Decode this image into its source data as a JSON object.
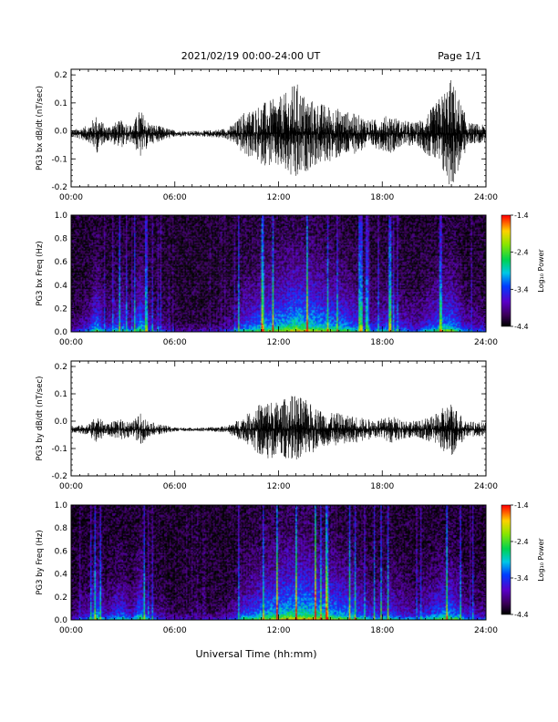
{
  "header": {
    "date_range": "2021/02/19   00:00-24:00 UT",
    "page": "Page 1/1"
  },
  "x_axis_title": "Universal Time (hh:mm)",
  "chart_data": [
    {
      "id": "bx-waveform",
      "type": "line",
      "ylabel": "PG3 bx dB/dt (nT/sec)",
      "xlim": [
        0,
        24
      ],
      "ylim": [
        -0.2,
        0.22
      ],
      "xticks": [
        "00:00",
        "06:00",
        "12:00",
        "18:00",
        "24:00"
      ],
      "yticks": [
        "-0.2",
        "-0.1",
        "0.0",
        "0.1",
        "0.2"
      ],
      "ytick_values": [
        -0.2,
        -0.1,
        0.0,
        0.1,
        0.2
      ],
      "x_hours": [
        0,
        1,
        1.5,
        2,
        2.5,
        3,
        3.5,
        4,
        4.5,
        5,
        6,
        7,
        8,
        9,
        9.5,
        10,
        10.5,
        11,
        11.5,
        12,
        12.5,
        13,
        13.5,
        14,
        14.5,
        15,
        15.5,
        16,
        16.5,
        17,
        17.5,
        18,
        18.5,
        19,
        20,
        20.5,
        21,
        21.5,
        22,
        22.5,
        23,
        24
      ],
      "envelope": [
        0.012,
        0.03,
        0.07,
        0.025,
        0.04,
        0.05,
        0.03,
        0.09,
        0.04,
        0.03,
        0.012,
        0.01,
        0.012,
        0.02,
        0.04,
        0.08,
        0.09,
        0.11,
        0.12,
        0.13,
        0.15,
        0.19,
        0.14,
        0.12,
        0.11,
        0.1,
        0.09,
        0.08,
        0.07,
        0.06,
        0.05,
        0.06,
        0.07,
        0.05,
        0.04,
        0.07,
        0.1,
        0.15,
        0.2,
        0.12,
        0.04,
        0.03
      ],
      "offset": -0.01
    },
    {
      "id": "bx-spectrogram",
      "type": "heatmap",
      "ylabel": "PG3 bx Freq (Hz)",
      "xlim": [
        0,
        24
      ],
      "ylim": [
        0,
        1.0
      ],
      "xticks": [
        "00:00",
        "06:00",
        "12:00",
        "18:00",
        "24:00"
      ],
      "yticks": [
        "0.0",
        "0.2",
        "0.4",
        "0.6",
        "0.8",
        "1.0"
      ],
      "ytick_values": [
        0.0,
        0.2,
        0.4,
        0.6,
        0.8,
        1.0
      ],
      "colorbar": {
        "label": "Log₁₀ Power",
        "range": [
          -4.4,
          -1.4
        ],
        "ticks": [
          "-1.4",
          "-2.4",
          "-3.4",
          "-4.4"
        ],
        "tick_values": [
          -1.4,
          -2.4,
          -3.4,
          -4.4
        ]
      },
      "activity_hours": [
        0,
        1,
        1.5,
        2,
        2.5,
        3,
        3.5,
        4,
        4.5,
        5,
        6,
        7,
        8,
        9,
        9.5,
        10,
        10.5,
        11,
        11.5,
        12,
        12.5,
        13,
        13.5,
        14,
        14.5,
        15,
        15.5,
        16,
        16.5,
        17,
        17.5,
        18,
        18.5,
        19,
        20,
        20.5,
        21,
        21.5,
        22,
        22.5,
        23,
        24
      ],
      "activity": [
        0.15,
        0.4,
        0.75,
        0.35,
        0.5,
        0.6,
        0.35,
        0.8,
        0.4,
        0.3,
        0.12,
        0.1,
        0.12,
        0.2,
        0.35,
        0.6,
        0.65,
        0.75,
        0.8,
        0.85,
        0.9,
        1.0,
        0.95,
        0.9,
        0.85,
        0.8,
        0.75,
        0.7,
        0.6,
        0.5,
        0.45,
        0.5,
        0.6,
        0.45,
        0.35,
        0.5,
        0.6,
        0.75,
        0.8,
        0.55,
        0.35,
        0.3
      ]
    },
    {
      "id": "by-waveform",
      "type": "line",
      "ylabel": "PG3 by dB/dt (nT/sec)",
      "xlim": [
        0,
        24
      ],
      "ylim": [
        -0.2,
        0.22
      ],
      "xticks": [
        "00:00",
        "06:00",
        "12:00",
        "18:00",
        "24:00"
      ],
      "yticks": [
        "-0.2",
        "-0.1",
        "0.0",
        "0.1",
        "0.2"
      ],
      "ytick_values": [
        -0.2,
        -0.1,
        0.0,
        0.1,
        0.2
      ],
      "x_hours": [
        0,
        1,
        1.5,
        2,
        2.5,
        3,
        3.5,
        4,
        4.5,
        5,
        6,
        7,
        8,
        9,
        9.5,
        10,
        10.5,
        11,
        11.5,
        12,
        12.5,
        13,
        13.5,
        14,
        14.5,
        15,
        15.5,
        16,
        16.5,
        17,
        17.5,
        18,
        18.5,
        19,
        20,
        20.5,
        21,
        21.5,
        22,
        22.5,
        23,
        24
      ],
      "envelope": [
        0.01,
        0.02,
        0.05,
        0.02,
        0.03,
        0.04,
        0.025,
        0.06,
        0.03,
        0.02,
        0.008,
        0.006,
        0.008,
        0.012,
        0.03,
        0.05,
        0.07,
        0.1,
        0.11,
        0.1,
        0.12,
        0.13,
        0.11,
        0.09,
        0.07,
        0.06,
        0.06,
        0.05,
        0.05,
        0.04,
        0.035,
        0.04,
        0.05,
        0.04,
        0.03,
        0.04,
        0.05,
        0.08,
        0.1,
        0.06,
        0.03,
        0.025
      ],
      "offset": -0.03
    },
    {
      "id": "by-spectrogram",
      "type": "heatmap",
      "ylabel": "PG3 by Freq (Hz)",
      "xlim": [
        0,
        24
      ],
      "ylim": [
        0,
        1.0
      ],
      "xticks": [
        "00:00",
        "06:00",
        "12:00",
        "18:00",
        "24:00"
      ],
      "yticks": [
        "0.0",
        "0.2",
        "0.4",
        "0.6",
        "0.8",
        "1.0"
      ],
      "ytick_values": [
        0.0,
        0.2,
        0.4,
        0.6,
        0.8,
        1.0
      ],
      "colorbar": {
        "label": "Log₁₀ Power",
        "range": [
          -4.4,
          -1.4
        ],
        "ticks": [
          "-1.4",
          "-2.4",
          "-3.4",
          "-4.4"
        ],
        "tick_values": [
          -1.4,
          -2.4,
          -3.4,
          -4.4
        ]
      },
      "activity_hours": [
        0,
        1,
        1.5,
        2,
        2.5,
        3,
        3.5,
        4,
        4.5,
        5,
        6,
        7,
        8,
        9,
        9.5,
        10,
        10.5,
        11,
        11.5,
        12,
        12.5,
        13,
        13.5,
        14,
        14.5,
        15,
        15.5,
        16,
        16.5,
        17,
        17.5,
        18,
        18.5,
        19,
        20,
        20.5,
        21,
        21.5,
        22,
        22.5,
        23,
        24
      ],
      "activity": [
        0.15,
        0.4,
        0.75,
        0.35,
        0.5,
        0.6,
        0.35,
        0.75,
        0.4,
        0.3,
        0.12,
        0.1,
        0.12,
        0.2,
        0.35,
        0.6,
        0.65,
        0.75,
        0.85,
        0.9,
        0.95,
        1.0,
        1.0,
        0.95,
        0.9,
        0.85,
        0.8,
        0.75,
        0.65,
        0.55,
        0.45,
        0.5,
        0.6,
        0.45,
        0.35,
        0.5,
        0.6,
        0.7,
        0.75,
        0.55,
        0.35,
        0.3
      ]
    }
  ]
}
